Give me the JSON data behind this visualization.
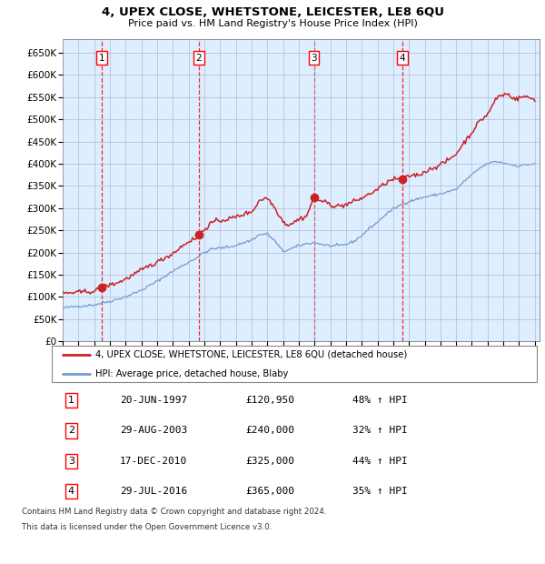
{
  "title1": "4, UPEX CLOSE, WHETSTONE, LEICESTER, LE8 6QU",
  "title2": "Price paid vs. HM Land Registry's House Price Index (HPI)",
  "hpi_color": "#7799cc",
  "price_color": "#cc2222",
  "marker_color": "#cc2222",
  "bg_color": "#ddeeff",
  "grid_color": "#aaaacc",
  "ylim": [
    0,
    680000
  ],
  "yticks": [
    0,
    50000,
    100000,
    150000,
    200000,
    250000,
    300000,
    350000,
    400000,
    450000,
    500000,
    550000,
    600000,
    650000
  ],
  "ytick_labels": [
    "£0",
    "£50K",
    "£100K",
    "£150K",
    "£200K",
    "£250K",
    "£300K",
    "£350K",
    "£400K",
    "£450K",
    "£500K",
    "£550K",
    "£600K",
    "£650K"
  ],
  "sale_dates": [
    1997.47,
    2003.66,
    2010.96,
    2016.57
  ],
  "sale_prices": [
    120950,
    240000,
    325000,
    365000
  ],
  "sale_labels": [
    "1",
    "2",
    "3",
    "4"
  ],
  "legend_line1": "4, UPEX CLOSE, WHETSTONE, LEICESTER, LE8 6QU (detached house)",
  "legend_line2": "HPI: Average price, detached house, Blaby",
  "table_entries": [
    [
      "1",
      "20-JUN-1997",
      "£120,950",
      "48% ↑ HPI"
    ],
    [
      "2",
      "29-AUG-2003",
      "£240,000",
      "32% ↑ HPI"
    ],
    [
      "3",
      "17-DEC-2010",
      "£325,000",
      "44% ↑ HPI"
    ],
    [
      "4",
      "29-JUL-2016",
      "£365,000",
      "35% ↑ HPI"
    ]
  ],
  "footnote1": "Contains HM Land Registry data © Crown copyright and database right 2024.",
  "footnote2": "This data is licensed under the Open Government Licence v3.0."
}
